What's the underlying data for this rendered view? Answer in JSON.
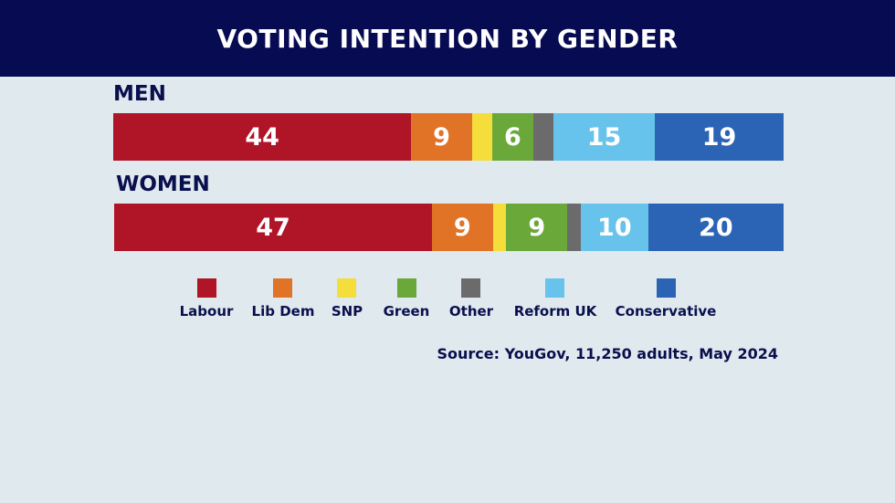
{
  "title": "VOTING INTENTION BY GENDER",
  "source": "Source: YouGov, 11,250 adults, May 2024",
  "colors": {
    "header_bg": "#070b52",
    "background": "#dfe9ee",
    "Labour": "#b01427",
    "Lib Dem": "#e07326",
    "SNP": "#f5de3c",
    "Green": "#6aa83a",
    "Other": "#6b6b6b",
    "Reform UK": "#67c3eb",
    "Conservative": "#2b64b4"
  },
  "chart_data": {
    "type": "bar",
    "orientation": "horizontal",
    "stacked": true,
    "categories": [
      "MEN",
      "WOMEN"
    ],
    "series": [
      {
        "name": "Labour",
        "values": [
          44,
          47
        ],
        "labels": [
          "44",
          "47"
        ]
      },
      {
        "name": "Lib Dem",
        "values": [
          9,
          9
        ],
        "labels": [
          "9",
          "9"
        ]
      },
      {
        "name": "SNP",
        "values": [
          3,
          2
        ],
        "labels": [
          "",
          ""
        ]
      },
      {
        "name": "Green",
        "values": [
          6,
          9
        ],
        "labels": [
          "6",
          "9"
        ]
      },
      {
        "name": "Other",
        "values": [
          3,
          2
        ],
        "labels": [
          "",
          ""
        ]
      },
      {
        "name": "Reform UK",
        "values": [
          15,
          10
        ],
        "labels": [
          "15",
          "10"
        ]
      },
      {
        "name": "Conservative",
        "values": [
          19,
          20
        ],
        "labels": [
          "19",
          "20"
        ]
      }
    ],
    "legend_position": "bottom"
  }
}
